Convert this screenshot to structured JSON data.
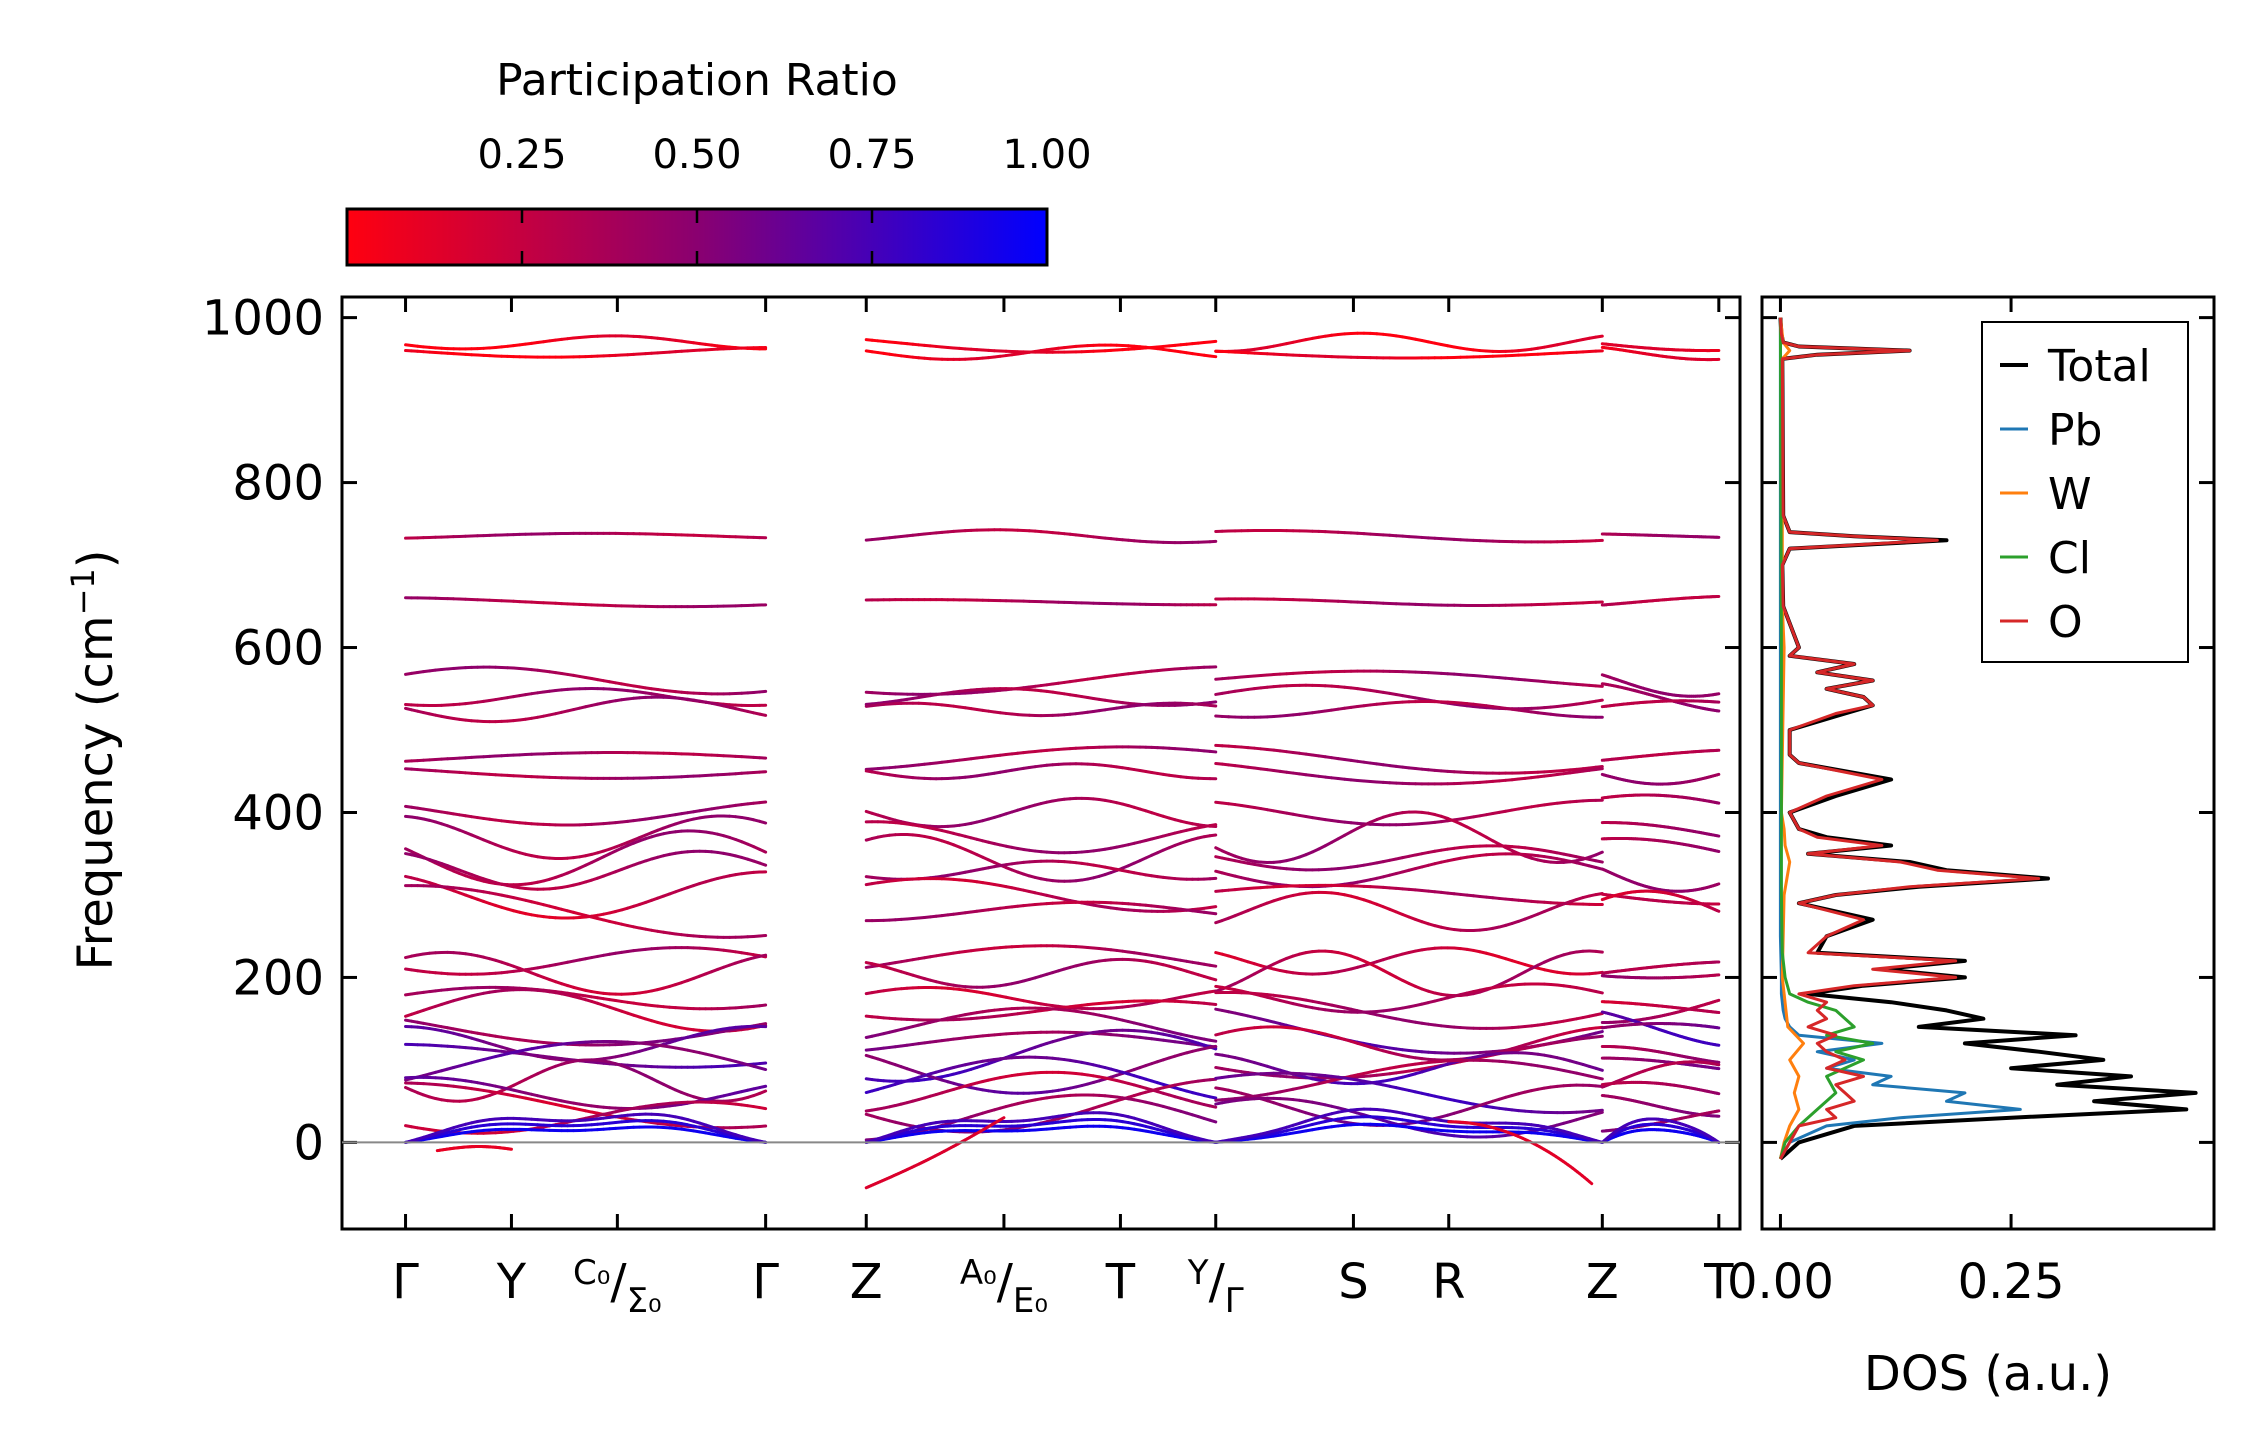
{
  "chart_data": [
    {
      "type": "line",
      "name": "phonon-band-structure",
      "ylabel": "Frequency (cm",
      "ylabel_sup": "−1",
      "ylabel_close": ")",
      "ylim": [
        -105,
        1025
      ],
      "yticks": [
        0,
        200,
        400,
        600,
        800,
        1000
      ],
      "x_segments": [
        {
          "labels": [
            "Γ",
            "Y",
            "C₀|Σ₀",
            "Γ"
          ],
          "positions": [
            0,
            1,
            2,
            3.4
          ]
        },
        {
          "labels": [
            "Z",
            "A₀|E₀",
            "T",
            "Y|Γ"
          ],
          "positions": [
            0,
            1.3,
            2.4,
            3.3
          ]
        },
        {
          "labels": [
            "S",
            "R",
            "Z"
          ],
          "positions": [
            0,
            0.9,
            2.4
          ]
        },
        {
          "labels": [
            "T"
          ],
          "positions": [
            0,
            1
          ]
        }
      ],
      "high_symmetry_labels": [
        "Γ",
        "Y",
        "C0/Σ0",
        "Γ",
        "Z",
        "A0/E0",
        "T",
        "Y/Γ",
        "S",
        "R",
        "Z",
        "T"
      ],
      "label_parts": [
        {
          "main": "Γ"
        },
        {
          "main": "Y"
        },
        {
          "sup": "C₀",
          "main": "/",
          "sub": "Σ₀"
        },
        {
          "main": "Γ"
        },
        {
          "main": "Z"
        },
        {
          "sup": "A₀",
          "main": "/",
          "sub": "E₀"
        },
        {
          "main": "T"
        },
        {
          "sup": "Y",
          "main": "/",
          "sub": "Γ"
        },
        {
          "main": "S"
        },
        {
          "main": "R"
        },
        {
          "main": "Z"
        },
        {
          "main": "T"
        }
      ],
      "representative_band_frequencies": [
        970,
        958,
        735,
        655,
        560,
        540,
        525,
        465,
        450,
        400,
        370,
        345,
        330,
        300,
        280,
        220,
        205,
        175,
        160,
        140,
        120,
        105,
        90,
        75,
        60,
        45,
        30
      ],
      "acoustic_branch_max": 40,
      "soft_mode_min": -55,
      "zero_line": 0
    },
    {
      "type": "line",
      "name": "density-of-states",
      "xlabel": "DOS (a.u.)",
      "xlim": [
        -0.02,
        0.47
      ],
      "ylim": [
        -105,
        1025
      ],
      "xticks": [
        "0.00",
        "0.25"
      ],
      "xtick_values": [
        0.0,
        0.25
      ],
      "series": [
        {
          "name": "Total",
          "color": "#000000",
          "freq": [
            -20,
            0,
            20,
            30,
            40,
            50,
            60,
            70,
            80,
            90,
            100,
            110,
            120,
            130,
            140,
            150,
            160,
            170,
            180,
            190,
            200,
            210,
            220,
            230,
            250,
            270,
            290,
            300,
            310,
            320,
            330,
            340,
            350,
            360,
            370,
            380,
            400,
            420,
            440,
            460,
            470,
            500,
            520,
            530,
            540,
            550,
            560,
            570,
            580,
            590,
            600,
            650,
            700,
            720,
            730,
            735,
            740,
            760,
            950,
            955,
            960,
            965,
            970,
            980,
            1000
          ],
          "dos": [
            0.0,
            0.02,
            0.08,
            0.25,
            0.44,
            0.34,
            0.45,
            0.3,
            0.38,
            0.25,
            0.35,
            0.28,
            0.2,
            0.32,
            0.15,
            0.22,
            0.18,
            0.12,
            0.03,
            0.09,
            0.2,
            0.11,
            0.2,
            0.04,
            0.05,
            0.1,
            0.02,
            0.06,
            0.15,
            0.29,
            0.18,
            0.14,
            0.03,
            0.12,
            0.05,
            0.02,
            0.01,
            0.06,
            0.12,
            0.02,
            0.01,
            0.01,
            0.07,
            0.1,
            0.09,
            0.05,
            0.1,
            0.04,
            0.08,
            0.01,
            0.02,
            0.003,
            0.002,
            0.01,
            0.18,
            0.08,
            0.01,
            0.003,
            0.002,
            0.04,
            0.14,
            0.02,
            0.003,
            0.001,
            0.0
          ]
        },
        {
          "name": "Pb",
          "color": "#1f77b4",
          "freq": [
            -20,
            0,
            20,
            30,
            40,
            50,
            60,
            70,
            80,
            90,
            100,
            110,
            120,
            130,
            140,
            150,
            160,
            180,
            200,
            250,
            1000
          ],
          "dos": [
            0.0,
            0.01,
            0.05,
            0.13,
            0.26,
            0.18,
            0.2,
            0.1,
            0.12,
            0.05,
            0.08,
            0.04,
            0.11,
            0.02,
            0.01,
            0.005,
            0.003,
            0.001,
            0.001,
            0.0,
            0.0
          ]
        },
        {
          "name": "W",
          "color": "#ff7f0e",
          "freq": [
            -20,
            0,
            20,
            40,
            60,
            80,
            100,
            120,
            140,
            200,
            300,
            340,
            360,
            380,
            400,
            600,
            650,
            950,
            960,
            970,
            1000
          ],
          "dos": [
            0.0,
            0.004,
            0.01,
            0.02,
            0.015,
            0.02,
            0.01,
            0.025,
            0.008,
            0.002,
            0.004,
            0.01,
            0.005,
            0.004,
            0.001,
            0.004,
            0.002,
            0.002,
            0.01,
            0.003,
            0.0
          ]
        },
        {
          "name": "Cl",
          "color": "#2ca02c",
          "freq": [
            -20,
            0,
            20,
            40,
            60,
            80,
            100,
            110,
            120,
            130,
            140,
            160,
            170,
            180,
            200,
            230,
            300,
            600,
            1000
          ],
          "dos": [
            0.0,
            0.005,
            0.02,
            0.04,
            0.06,
            0.05,
            0.09,
            0.06,
            0.1,
            0.05,
            0.08,
            0.06,
            0.03,
            0.01,
            0.005,
            0.002,
            0.001,
            0.001,
            0.0
          ]
        },
        {
          "name": "O",
          "color": "#d62728",
          "freq": [
            -20,
            0,
            20,
            30,
            40,
            50,
            60,
            70,
            80,
            90,
            100,
            110,
            120,
            130,
            140,
            150,
            160,
            170,
            180,
            190,
            200,
            210,
            220,
            230,
            250,
            270,
            290,
            300,
            310,
            320,
            330,
            340,
            350,
            360,
            370,
            380,
            400,
            420,
            440,
            460,
            470,
            500,
            520,
            530,
            540,
            550,
            560,
            570,
            580,
            590,
            600,
            650,
            700,
            720,
            730,
            735,
            740,
            760,
            950,
            955,
            960,
            965,
            970,
            980,
            1000
          ],
          "dos": [
            0.0,
            0.01,
            0.02,
            0.06,
            0.05,
            0.08,
            0.07,
            0.06,
            0.09,
            0.05,
            0.07,
            0.05,
            0.04,
            0.06,
            0.03,
            0.05,
            0.04,
            0.05,
            0.02,
            0.08,
            0.19,
            0.1,
            0.19,
            0.03,
            0.05,
            0.09,
            0.02,
            0.06,
            0.14,
            0.28,
            0.17,
            0.13,
            0.03,
            0.11,
            0.04,
            0.02,
            0.01,
            0.05,
            0.11,
            0.02,
            0.01,
            0.01,
            0.06,
            0.1,
            0.09,
            0.05,
            0.1,
            0.04,
            0.08,
            0.01,
            0.02,
            0.003,
            0.002,
            0.01,
            0.17,
            0.08,
            0.01,
            0.003,
            0.002,
            0.04,
            0.14,
            0.02,
            0.003,
            0.001,
            0.0
          ]
        }
      ],
      "legend": [
        "Total",
        "Pb",
        "W",
        "Cl",
        "O"
      ],
      "legend_location": "top-right"
    },
    {
      "type": "colorbar",
      "name": "participation-ratio-colorbar",
      "title": "Participation Ratio",
      "range": [
        0.0,
        1.0
      ],
      "ticks": [
        "0.25",
        "0.50",
        "0.75",
        "1.00"
      ],
      "tick_values": [
        0.25,
        0.5,
        0.75,
        1.0
      ],
      "colors": {
        "low": "#ff0000",
        "mid": "#8a0a78",
        "high": "#0000ff"
      }
    }
  ]
}
